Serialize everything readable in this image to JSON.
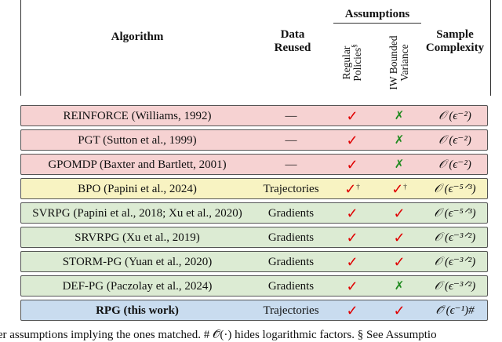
{
  "header": {
    "algorithm": "Algorithm",
    "data_reused": "Data Reused",
    "assumptions": "Assumptions",
    "regular_policies": "Regular Policies",
    "regular_policies_mark": "§",
    "iw_bounded_variance": "IW Bounded Variance",
    "sample_complexity": "Sample Complexity"
  },
  "colors": {
    "red_row": "#f6d2d2",
    "yellow_row": "#f8f3c2",
    "green_row": "#dcebd3",
    "blue_row": "#c9dcef",
    "check": "#e00000",
    "cross": "#1f8a1f"
  },
  "rows": [
    {
      "algorithm": "REINFORCE (Williams, 1992)",
      "data": "—",
      "regular": "✓",
      "regular_mark": "",
      "iw": "✗",
      "iw_mark": "",
      "complexity": "𝒪 (ϵ⁻²)",
      "color": "red"
    },
    {
      "algorithm": "PGT (Sutton et al., 1999)",
      "data": "—",
      "regular": "✓",
      "regular_mark": "",
      "iw": "✗",
      "iw_mark": "",
      "complexity": "𝒪 (ϵ⁻²)",
      "color": "red"
    },
    {
      "algorithm": "GPOMDP (Baxter and Bartlett, 2001)",
      "data": "—",
      "regular": "✓",
      "regular_mark": "",
      "iw": "✗",
      "iw_mark": "",
      "complexity": "𝒪 (ϵ⁻²)",
      "color": "red"
    },
    {
      "algorithm": "BPO (Papini et al., 2024)",
      "data": "Trajectories",
      "regular": "✓",
      "regular_mark": "†",
      "iw": "✓",
      "iw_mark": "†",
      "complexity": "𝒪 (ϵ⁻⁵ᐟ³)",
      "color": "yellow"
    },
    {
      "algorithm": "SVRPG (Papini et al., 2018; Xu et al., 2020)",
      "data": "Gradients",
      "regular": "✓",
      "regular_mark": "",
      "iw": "✓",
      "iw_mark": "",
      "complexity": "𝒪 (ϵ⁻⁵ᐟ³)",
      "color": "green"
    },
    {
      "algorithm": "SRVRPG (Xu et al., 2019)",
      "data": "Gradients",
      "regular": "✓",
      "regular_mark": "",
      "iw": "✓",
      "iw_mark": "",
      "complexity": "𝒪 (ϵ⁻³ᐟ²)",
      "color": "green"
    },
    {
      "algorithm": "STORM-PG (Yuan et al., 2020)",
      "data": "Gradients",
      "regular": "✓",
      "regular_mark": "",
      "iw": "✓",
      "iw_mark": "",
      "complexity": "𝒪 (ϵ⁻³ᐟ²)",
      "color": "green"
    },
    {
      "algorithm": "DEF-PG (Paczolay et al., 2024)",
      "data": "Gradients",
      "regular": "✓",
      "regular_mark": "",
      "iw": "✗",
      "iw_mark": "",
      "complexity": "𝒪 (ϵ⁻³ᐟ²)",
      "color": "green"
    },
    {
      "algorithm": "RPG (this work)",
      "data": "Trajectories",
      "regular": "✓",
      "regular_mark": "",
      "iw": "✓",
      "iw_mark": "",
      "complexity": "𝒪̃ (ϵ⁻¹)#",
      "color": "blue"
    }
  ],
  "footer": "cter assumptions implying the ones matched. # 𝒪̃(·) hides logarithmic factors. § See Assumptio"
}
